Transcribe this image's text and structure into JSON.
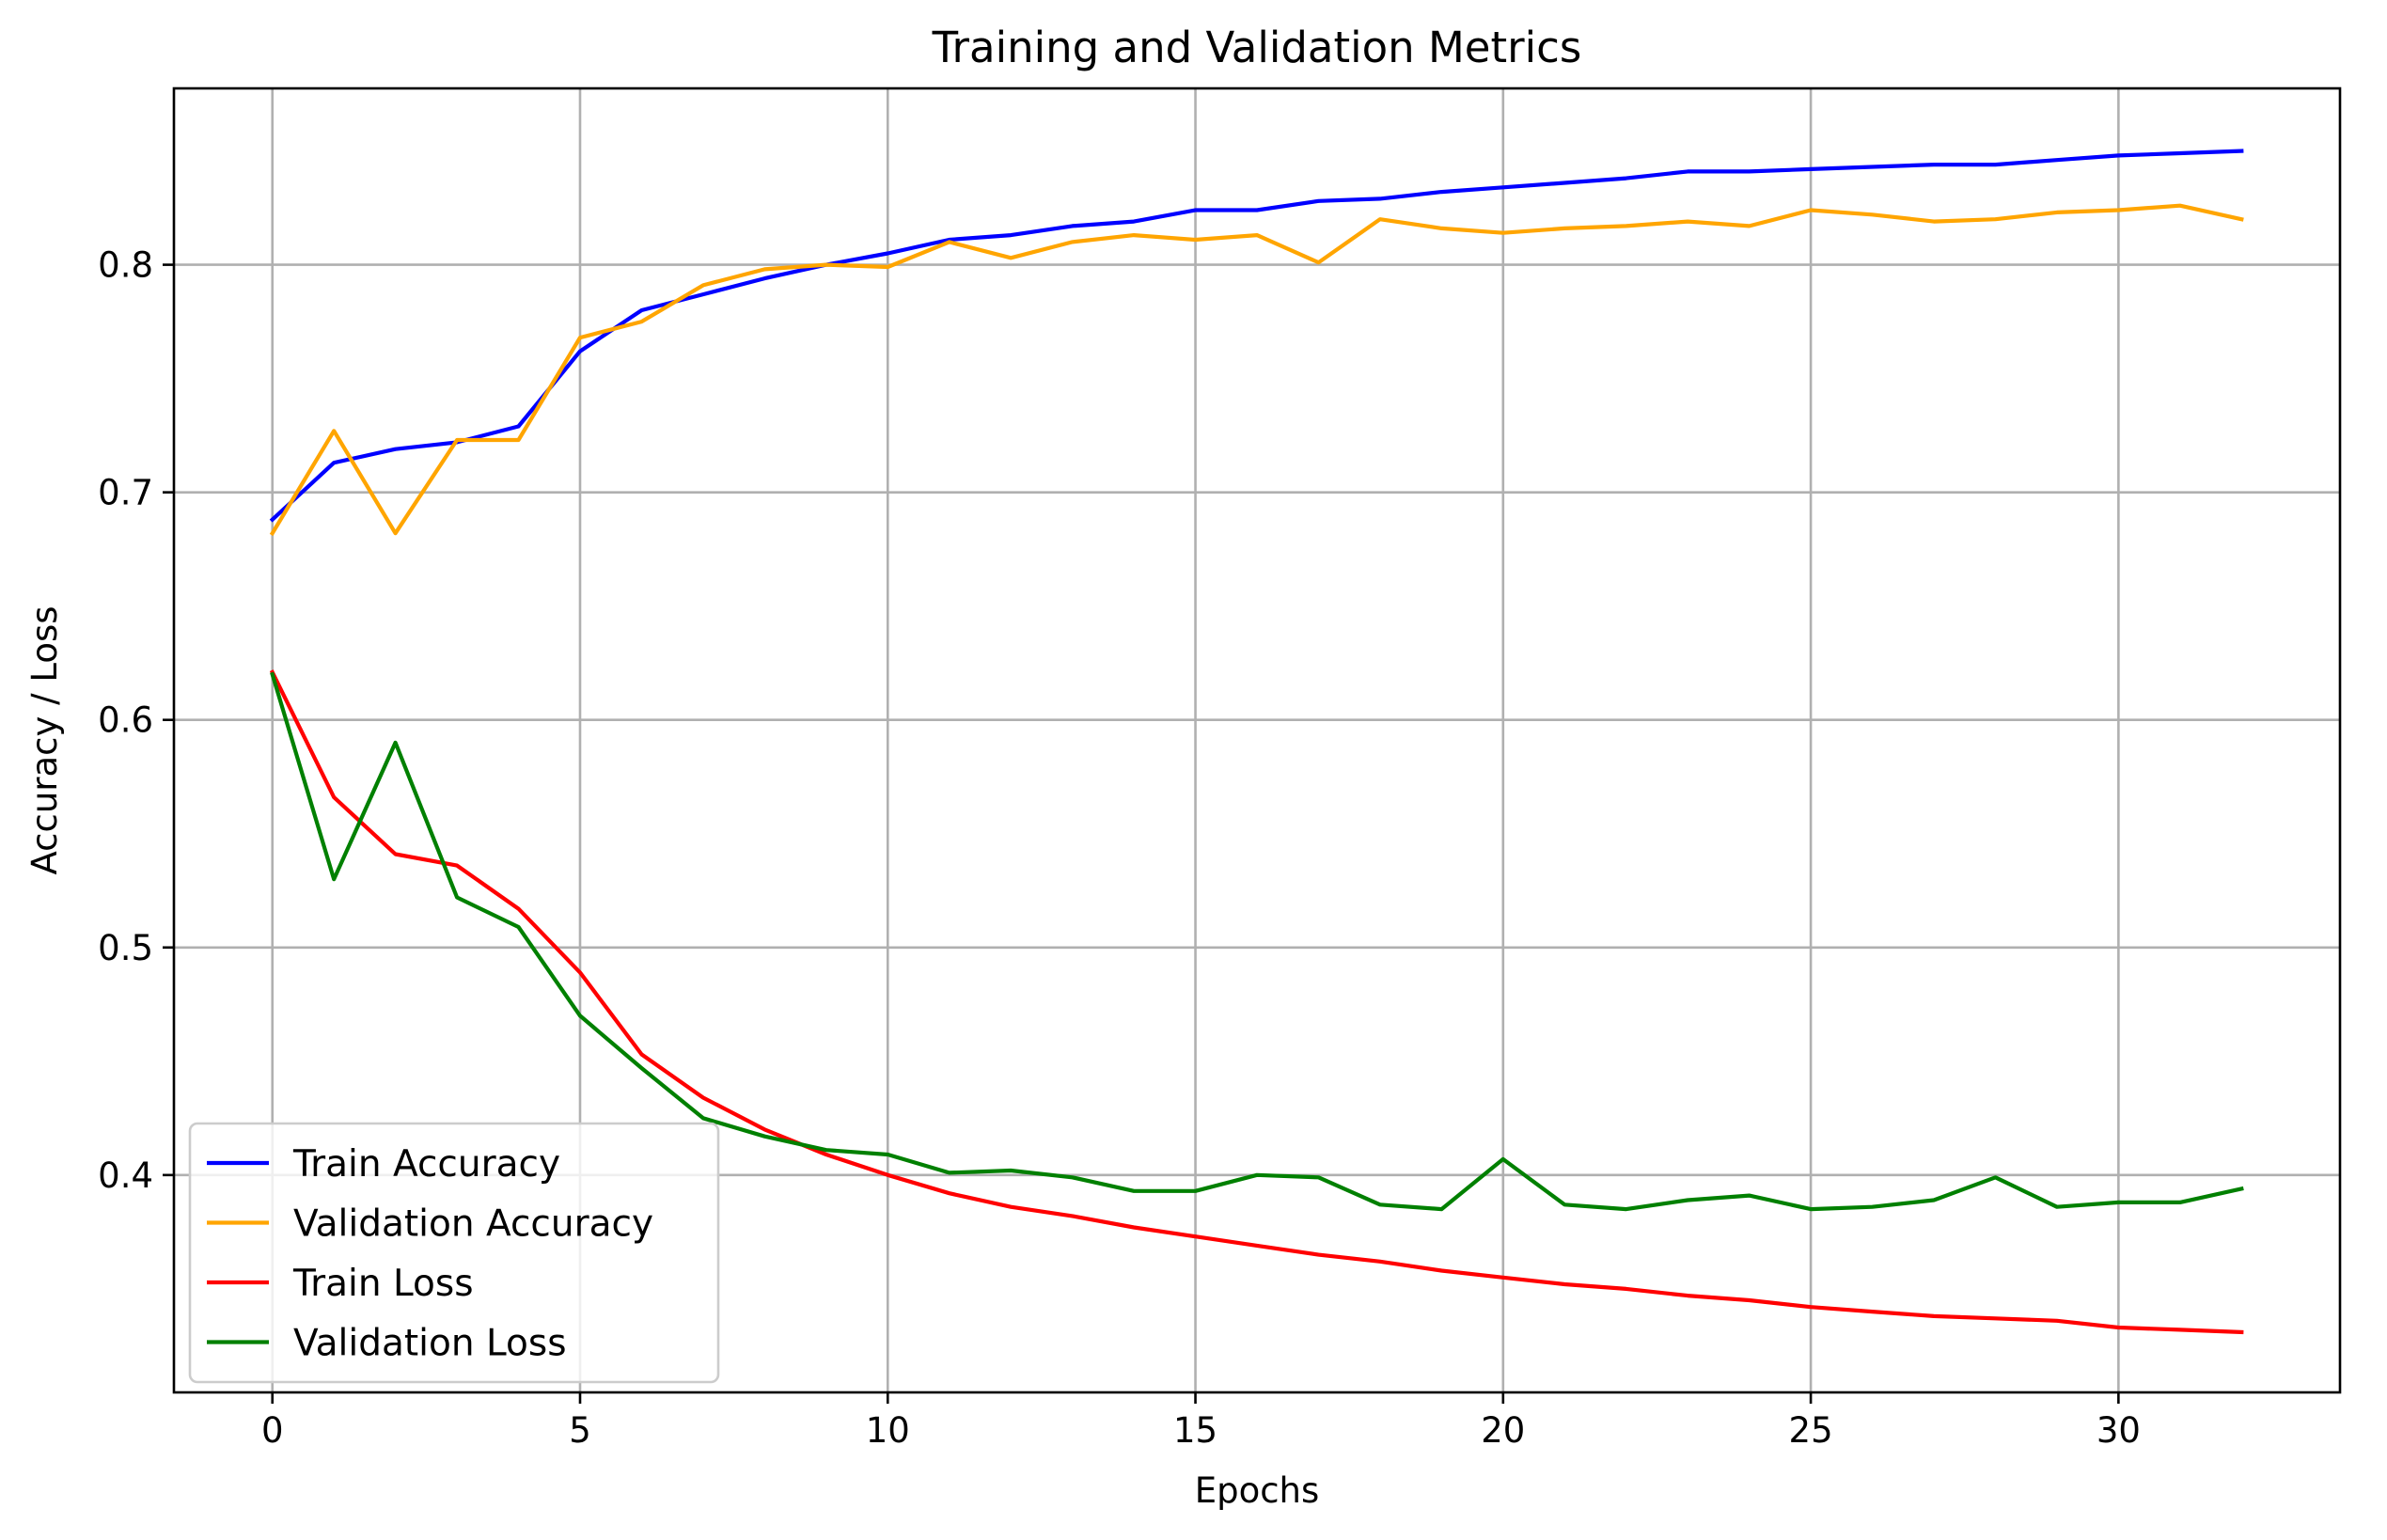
{
  "chart_data": {
    "type": "line",
    "title": "Training and Validation Metrics",
    "xlabel": "Epochs",
    "ylabel": "Accuracy / Loss",
    "xlim": [
      -1.6,
      33.6
    ],
    "ylim": [
      0.3045,
      0.8775
    ],
    "xticks": [
      0,
      5,
      10,
      15,
      20,
      25,
      30
    ],
    "xtick_labels": [
      "0",
      "5",
      "10",
      "15",
      "20",
      "25",
      "30"
    ],
    "yticks": [
      0.4,
      0.5,
      0.6,
      0.7,
      0.8
    ],
    "ytick_labels": [
      "0.4",
      "0.5",
      "0.6",
      "0.7",
      "0.8"
    ],
    "grid": true,
    "legend_position": "lower-left",
    "x": [
      0,
      1,
      2,
      3,
      4,
      5,
      6,
      7,
      8,
      9,
      10,
      11,
      12,
      13,
      14,
      15,
      16,
      17,
      18,
      19,
      20,
      21,
      22,
      23,
      24,
      25,
      26,
      27,
      28,
      29,
      30,
      31,
      32
    ],
    "series": [
      {
        "name": "Train Accuracy",
        "color": "#0000ff",
        "values": [
          0.688,
          0.713,
          0.719,
          0.722,
          0.729,
          0.762,
          0.78,
          0.787,
          0.794,
          0.8,
          0.805,
          0.811,
          0.813,
          0.817,
          0.819,
          0.824,
          0.824,
          0.828,
          0.829,
          0.832,
          0.834,
          0.836,
          0.838,
          0.841,
          0.841,
          0.842,
          0.843,
          0.844,
          0.844,
          0.846,
          0.848,
          0.849,
          0.85
        ]
      },
      {
        "name": "Validation Accuracy",
        "color": "#ffa500",
        "values": [
          0.682,
          0.727,
          0.682,
          0.723,
          0.723,
          0.768,
          0.775,
          0.791,
          0.798,
          0.8,
          0.799,
          0.81,
          0.803,
          0.81,
          0.813,
          0.811,
          0.813,
          0.801,
          0.82,
          0.816,
          0.814,
          0.816,
          0.817,
          0.819,
          0.817,
          0.824,
          0.822,
          0.819,
          0.82,
          0.823,
          0.824,
          0.826,
          0.82
        ]
      },
      {
        "name": "Train Loss",
        "color": "#ff0000",
        "values": [
          0.621,
          0.566,
          0.541,
          0.536,
          0.517,
          0.489,
          0.453,
          0.434,
          0.42,
          0.409,
          0.4,
          0.392,
          0.386,
          0.382,
          0.377,
          0.373,
          0.369,
          0.365,
          0.362,
          0.358,
          0.355,
          0.352,
          0.35,
          0.347,
          0.345,
          0.342,
          0.34,
          0.338,
          0.337,
          0.336,
          0.333,
          0.332,
          0.331
        ]
      },
      {
        "name": "Validation Loss",
        "color": "#008000",
        "values": [
          0.62,
          0.53,
          0.59,
          0.522,
          0.509,
          0.47,
          0.447,
          0.425,
          0.417,
          0.411,
          0.409,
          0.401,
          0.402,
          0.399,
          0.393,
          0.393,
          0.4,
          0.399,
          0.387,
          0.385,
          0.407,
          0.387,
          0.385,
          0.389,
          0.391,
          0.385,
          0.386,
          0.389,
          0.399,
          0.386,
          0.388,
          0.388,
          0.394
        ]
      }
    ]
  }
}
